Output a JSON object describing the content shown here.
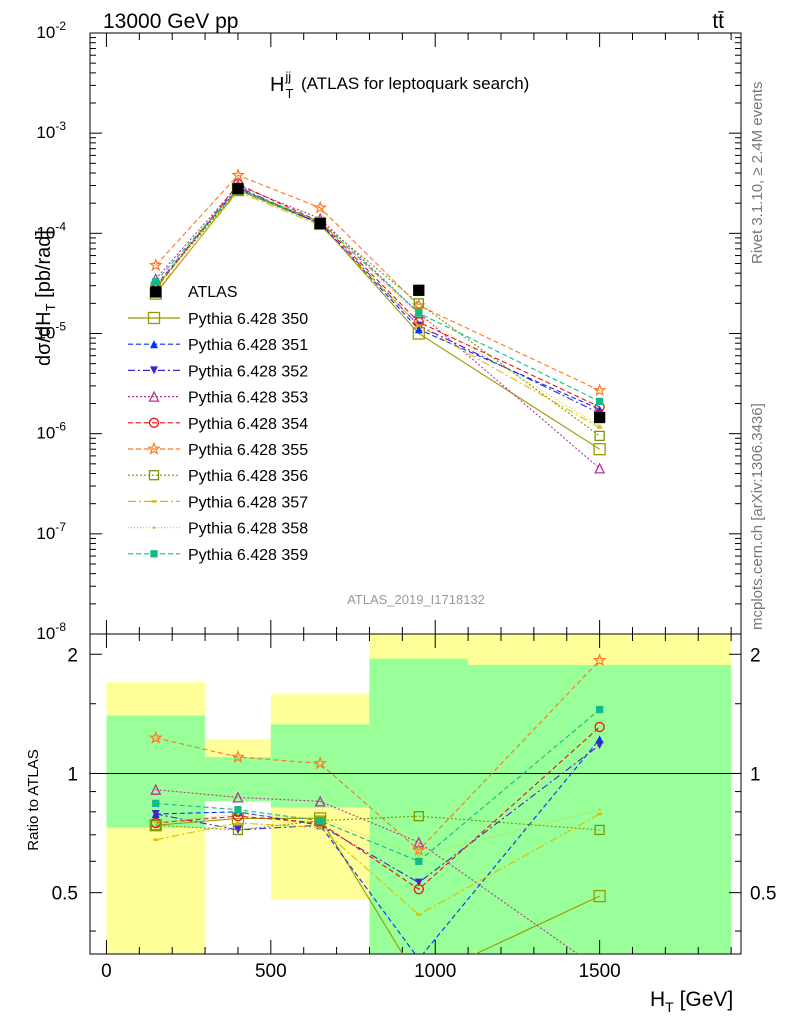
{
  "header": {
    "energy_label": "13000 GeV pp",
    "process_label": "tt̄",
    "side_label_top": "Rivet 3.1.10, ≥ 2.4M events",
    "side_label_bottom": "mcplots.cern.ch [arXiv:1306.3436]"
  },
  "chart_data": {
    "type": "line",
    "title": "H_T^jj (ATLAS for leptoquark search)",
    "analysis_id": "ATLAS_2019_I1718132",
    "xlabel": "H_T [GeV]",
    "ylabel_main": "dσ/dH_T [pb/rad]",
    "ylabel_ratio": "Ratio to ATLAS",
    "x": [
      150,
      400,
      650,
      950,
      1500
    ],
    "xlim": [
      -50,
      1930
    ],
    "xticks": [
      0,
      500,
      1000,
      1500
    ],
    "main_ylim": [
      1e-08,
      0.01
    ],
    "main_log": true,
    "main_yticks": [
      {
        "v": 1e-08,
        "label": "10^-8"
      },
      {
        "v": 1e-07,
        "label": "10^-7"
      },
      {
        "v": 1e-06,
        "label": "10^-6"
      },
      {
        "v": 1e-05,
        "label": "10^-5"
      },
      {
        "v": 0.0001,
        "label": "10^-4"
      },
      {
        "v": 0.001,
        "label": "10^-3"
      },
      {
        "v": 0.01,
        "label": "10^-2"
      }
    ],
    "ratio_ylim": [
      0.35,
      2.25
    ],
    "ratio_yticks": [
      0.5,
      1,
      2
    ],
    "data_series": {
      "name": "ATLAS",
      "color": "#000000",
      "values": [
        2.6e-05,
        0.00028,
        0.000125,
        2.7e-05,
        1.45e-06
      ]
    },
    "bands": {
      "yellow": [
        {
          "x0": 0,
          "x1": 300,
          "lo": 0.35,
          "hi": 1.7
        },
        {
          "x0": 300,
          "x1": 500,
          "lo": 0.35,
          "hi": 1.22
        },
        {
          "x0": 500,
          "x1": 800,
          "lo": 0.48,
          "hi": 1.59
        },
        {
          "x0": 800,
          "x1": 1900,
          "lo": 0.35,
          "hi": 2.25
        }
      ],
      "green": [
        {
          "x0": 0,
          "x1": 300,
          "lo": 0.73,
          "hi": 1.4
        },
        {
          "x0": 300,
          "x1": 500,
          "lo": 0.85,
          "hi": 1.1
        },
        {
          "x0": 500,
          "x1": 800,
          "lo": 0.82,
          "hi": 1.33
        },
        {
          "x0": 800,
          "x1": 1100,
          "lo": 0.35,
          "hi": 1.95
        },
        {
          "x0": 1100,
          "x1": 1900,
          "lo": 0.35,
          "hi": 1.88
        }
      ],
      "white": [
        {
          "x0": 300,
          "x1": 500,
          "lo": 0.35,
          "hi": 0.85
        }
      ]
    },
    "series": [
      {
        "name": "Pythia 6.428 350",
        "color": "#999900",
        "dash": "",
        "marker": "square-open",
        "msize": 11,
        "values": [
          2.5e-05,
          0.00027,
          0.000125,
          1e-05,
          7e-07
        ],
        "ratio": [
          0.74,
          0.77,
          0.77,
          0.3,
          0.49
        ]
      },
      {
        "name": "Pythia 6.428 351",
        "color": "#0033ff",
        "dash": "5,3",
        "marker": "triangle-up",
        "msize": 8,
        "values": [
          3e-05,
          0.00028,
          0.000125,
          1.1e-05,
          1.75e-06
        ],
        "ratio": [
          0.79,
          0.8,
          0.74,
          0.34,
          1.22
        ]
      },
      {
        "name": "Pythia 6.428 352",
        "color": "#4422cc",
        "dash": "7,3,2,3",
        "marker": "triangle-down",
        "msize": 8,
        "values": [
          3e-05,
          0.00029,
          0.000125,
          1.2e-05,
          1.6e-06
        ],
        "ratio": [
          0.79,
          0.72,
          0.74,
          0.53,
          1.18
        ]
      },
      {
        "name": "Pythia 6.428 353",
        "color": "#bb3399",
        "dash": "2,2",
        "marker": "triangle-open",
        "msize": 9,
        "values": [
          3.5e-05,
          0.0003,
          0.00014,
          1.6e-05,
          4.5e-07
        ],
        "ratio": [
          0.91,
          0.87,
          0.85,
          0.67,
          0.32
        ]
      },
      {
        "name": "Pythia 6.428 354",
        "color": "#ee1111",
        "dash": "5,3",
        "marker": "circle-open",
        "msize": 9,
        "values": [
          2.8e-05,
          0.00031,
          0.00013,
          1.3e-05,
          1.85e-06
        ],
        "ratio": [
          0.75,
          0.78,
          0.75,
          0.51,
          1.31
        ]
      },
      {
        "name": "Pythia 6.428 355",
        "color": "#ff7722",
        "dash": "5,3",
        "marker": "star-open",
        "msize": 11,
        "values": [
          4.8e-05,
          0.00038,
          0.00018,
          1.9e-05,
          2.7e-06
        ],
        "ratio": [
          1.23,
          1.1,
          1.06,
          0.64,
          1.93
        ]
      },
      {
        "name": "Pythia 6.428 356",
        "color": "#779900",
        "dash": "2,2",
        "marker": "square-open",
        "msize": 9,
        "values": [
          2.9e-05,
          0.00027,
          0.00013,
          2e-05,
          9.5e-07
        ],
        "ratio": [
          0.74,
          0.72,
          0.76,
          0.78,
          0.72
        ]
      },
      {
        "name": "Pythia 6.428 357",
        "color": "#ddbb00",
        "dash": "8,3,2,3",
        "marker": "bar",
        "msize": 5,
        "values": [
          2.6e-05,
          0.00026,
          0.00012,
          1.2e-05,
          1.15e-06
        ],
        "ratio": [
          0.68,
          0.75,
          0.73,
          0.44,
          0.79
        ]
      },
      {
        "name": "Pythia 6.428 358",
        "color": "#cccc33",
        "dash": "1,2",
        "marker": "dot",
        "msize": 4,
        "values": [
          3e-05,
          0.00028,
          0.00013,
          1.5e-05,
          1.2e-06
        ],
        "ratio": [
          0.75,
          0.79,
          0.77,
          0.62,
          0.81
        ]
      },
      {
        "name": "Pythia 6.428 359",
        "color": "#11bb88",
        "dash": "5,3",
        "marker": "square",
        "msize": 6,
        "values": [
          3.3e-05,
          0.00028,
          0.00013,
          1.6e-05,
          2.1e-06
        ],
        "ratio": [
          0.84,
          0.81,
          0.76,
          0.6,
          1.45
        ]
      }
    ]
  }
}
